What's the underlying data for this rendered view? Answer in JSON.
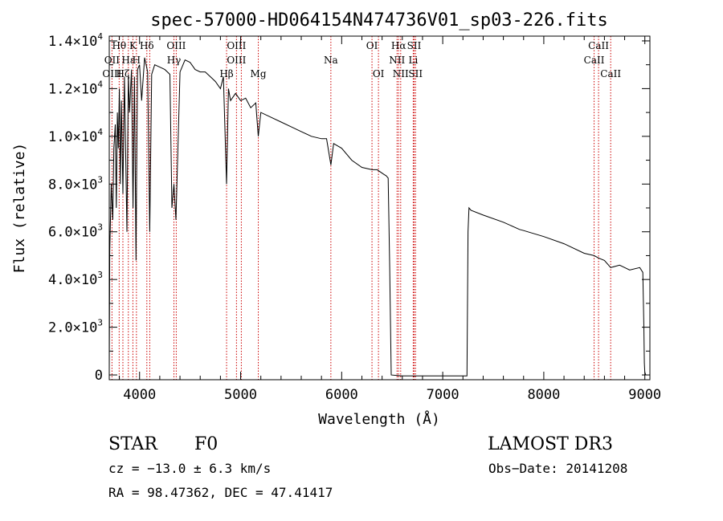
{
  "chart_data": {
    "type": "line",
    "title": "spec-57000-HD064154N474736V01_sp03-226.fits",
    "xlabel": "Wavelength (Å)",
    "ylabel": "Flux (relative)",
    "xlim": [
      3700,
      9050
    ],
    "ylim": [
      -200,
      14200
    ],
    "x_ticks": [
      4000,
      5000,
      6000,
      7000,
      8000,
      9000
    ],
    "y_ticks": [
      {
        "value": 0,
        "mantissa": "0",
        "exp": ""
      },
      {
        "value": 2000,
        "mantissa": "2.0×10",
        "exp": "3"
      },
      {
        "value": 4000,
        "mantissa": "4.0×10",
        "exp": "3"
      },
      {
        "value": 6000,
        "mantissa": "6.0×10",
        "exp": "3"
      },
      {
        "value": 8000,
        "mantissa": "8.0×10",
        "exp": "3"
      },
      {
        "value": 10000,
        "mantissa": "1.0×10",
        "exp": "4"
      },
      {
        "value": 12000,
        "mantissa": "1.2×10",
        "exp": "4"
      },
      {
        "value": 14000,
        "mantissa": "1.4×10",
        "exp": "4"
      }
    ],
    "series": [
      {
        "name": "flux",
        "x": [
          3700,
          3705,
          3720,
          3735,
          3745,
          3760,
          3770,
          3780,
          3790,
          3800,
          3810,
          3820,
          3835,
          3850,
          3860,
          3875,
          3889,
          3900,
          3920,
          3935,
          3950,
          3965,
          3970,
          3980,
          4000,
          4020,
          4050,
          4080,
          4101,
          4120,
          4150,
          4200,
          4250,
          4300,
          4320,
          4340,
          4360,
          4400,
          4450,
          4500,
          4550,
          4600,
          4650,
          4700,
          4750,
          4800,
          4830,
          4861,
          4880,
          4900,
          4950,
          5000,
          5050,
          5100,
          5150,
          5175,
          5200,
          5300,
          5400,
          5500,
          5600,
          5700,
          5800,
          5850,
          5893,
          5920,
          6000,
          6100,
          6200,
          6300,
          6350,
          6420,
          6440,
          6460,
          6475,
          6490,
          6600,
          6800,
          7000,
          7100,
          7200,
          7240,
          7250,
          7260,
          7280,
          7400,
          7600,
          7760,
          7800,
          8000,
          8200,
          8400,
          8498,
          8542,
          8600,
          8662,
          8750,
          8800,
          8850,
          8950,
          8980,
          8990,
          8995,
          9000,
          9010
        ],
        "values": [
          200,
          5200,
          8000,
          6500,
          9500,
          10500,
          7000,
          11000,
          9500,
          12000,
          8000,
          11500,
          7600,
          12500,
          10000,
          6000,
          12600,
          11000,
          12800,
          7000,
          12500,
          4800,
          8000,
          12800,
          13000,
          11500,
          13300,
          12700,
          6000,
          12600,
          13000,
          12900,
          12800,
          12600,
          7000,
          8000,
          6500,
          12700,
          13200,
          13100,
          12800,
          12700,
          12700,
          12500,
          12300,
          12000,
          12500,
          8000,
          12000,
          11500,
          11800,
          11500,
          11600,
          11200,
          11400,
          10000,
          11000,
          10800,
          10600,
          10400,
          10200,
          10000,
          9900,
          9900,
          8800,
          9700,
          9500,
          9000,
          8700,
          8600,
          8600,
          8400,
          8350,
          8250,
          4500,
          0,
          -40,
          -40,
          -40,
          -40,
          -40,
          -40,
          6000,
          7000,
          6900,
          6700,
          6400,
          6100,
          6050,
          5800,
          5500,
          5100,
          5000,
          4900,
          4800,
          4500,
          4600,
          4500,
          4400,
          4500,
          4300,
          2000,
          500,
          100,
          0
        ]
      }
    ],
    "lines": [
      {
        "label": "Hθ",
        "x": 3798,
        "row": 0
      },
      {
        "label": "K",
        "x": 3934,
        "row": 0
      },
      {
        "label": "Hδ",
        "x": 4072,
        "row": 0
      },
      {
        "label": "OIII",
        "x": 4363,
        "row": 0
      },
      {
        "label": "OIII",
        "x": 4959,
        "row": 0
      },
      {
        "label": "OI",
        "x": 6300,
        "row": 0
      },
      {
        "label": "Hα",
        "x": 6563,
        "row": 0
      },
      {
        "label": "SII",
        "x": 6717,
        "row": 0
      },
      {
        "label": "CaII",
        "x": 8542,
        "row": 0
      },
      {
        "label": "OII",
        "x": 3727,
        "row": 1
      },
      {
        "label": "Hε",
        "x": 3889,
        "row": 1
      },
      {
        "label": "H",
        "x": 3969,
        "row": 1
      },
      {
        "label": "Hγ",
        "x": 4340,
        "row": 1
      },
      {
        "label": "OIII",
        "x": 4959,
        "row": 1
      },
      {
        "label": "Na",
        "x": 5893,
        "row": 1
      },
      {
        "label": "NII",
        "x": 6548,
        "row": 1
      },
      {
        "label": "Li",
        "x": 6708,
        "row": 1
      },
      {
        "label": "CaII",
        "x": 8498,
        "row": 1
      },
      {
        "label": "OIII",
        "x": 3727,
        "row": 2
      },
      {
        "label": "Hζ",
        "x": 3835,
        "row": 2
      },
      {
        "label": "Hβ",
        "x": 4861,
        "row": 2
      },
      {
        "label": "Mg",
        "x": 5175,
        "row": 2
      },
      {
        "label": "OI",
        "x": 6364,
        "row": 2
      },
      {
        "label": "NII",
        "x": 6584,
        "row": 2
      },
      {
        "label": "SII",
        "x": 6731,
        "row": 2
      },
      {
        "label": "CaII",
        "x": 8662,
        "row": 2
      }
    ],
    "line_positions": [
      3727,
      3798,
      3835,
      3889,
      3934,
      3969,
      4072,
      4101,
      4340,
      4363,
      4861,
      4959,
      5007,
      5175,
      5893,
      6300,
      6364,
      6548,
      6563,
      6584,
      6708,
      6717,
      6731,
      8498,
      8542,
      8662
    ]
  },
  "info": {
    "star_label": "STAR",
    "spectral_type": "F0",
    "survey": "LAMOST DR3",
    "cz": "cz = −13.0 ± 6.3 km/s",
    "obs_date": "Obs−Date: 20141208",
    "radec": "RA =  98.47362, DEC =  47.41417"
  },
  "colors": {
    "axis": "#000000",
    "spectrum": "#000000",
    "line_markers": "#cc0000"
  }
}
